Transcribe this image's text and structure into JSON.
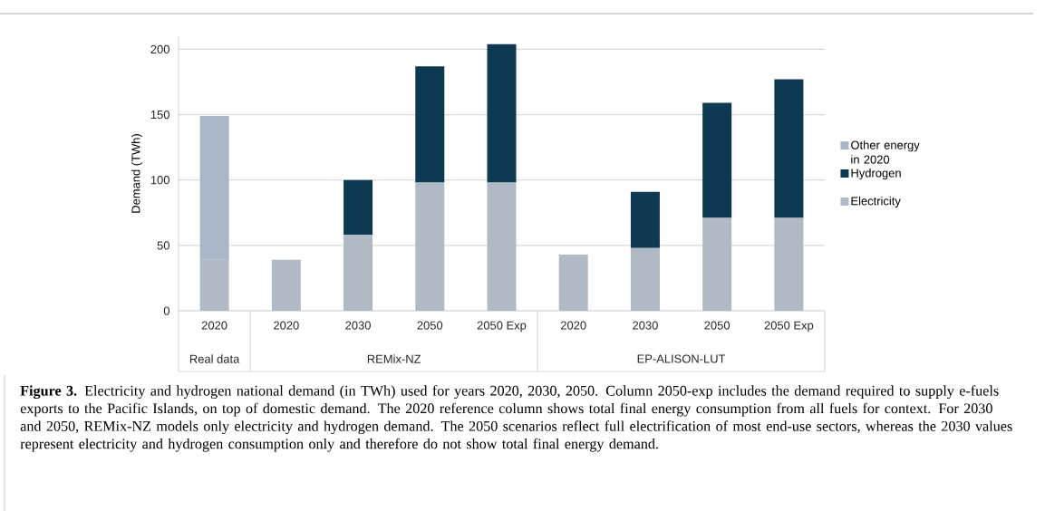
{
  "chart_data": {
    "type": "bar",
    "stacked": true,
    "ylabel": "Demand (TWh)",
    "categories": [
      "2020",
      "2020",
      "2030",
      "2050",
      "2050 Exp",
      "2020",
      "2030",
      "2050",
      "2050 Exp"
    ],
    "series": [
      {
        "name": "Electricity",
        "color": "#b0bac4",
        "values": [
          39,
          39,
          58,
          98,
          98,
          43,
          48,
          71,
          71
        ]
      },
      {
        "name": "Hydrogen",
        "color": "#0d3a52",
        "values": [
          null,
          null,
          42,
          89,
          106,
          null,
          43,
          88,
          106
        ]
      },
      {
        "name": "Other energy in 2020",
        "color": "#a9b6c8",
        "values": [
          110,
          null,
          null,
          null,
          null,
          null,
          null,
          null,
          null
        ]
      }
    ],
    "ylim": [
      0,
      210
    ],
    "yticks": [
      0,
      50,
      100,
      150,
      200
    ],
    "grid": "y",
    "legend": "right",
    "annotations": [
      "Real data",
      "REMix-NZ",
      "EP-ALISON-LUT",
      "**Figure 3.** Electricity and hydrogen national demand (in TWh) used for years 2020, 2030, 2050. Column 2050-exp includes the demand required to supply e-fuels exports to the Pacific Islands, on top of domestic demand. The 2020 reference column shows total final energy consumption from all fuels for context. For 2030 and 2050, REMix-NZ models only electricity and hydrogen demand. The 2050 scenarios reflect full electrification of most end-use sectors, whereas the 2030 values represent electricity and hydrogen consumption only and therefore do not show total final energy demand."
    ]
  }
}
